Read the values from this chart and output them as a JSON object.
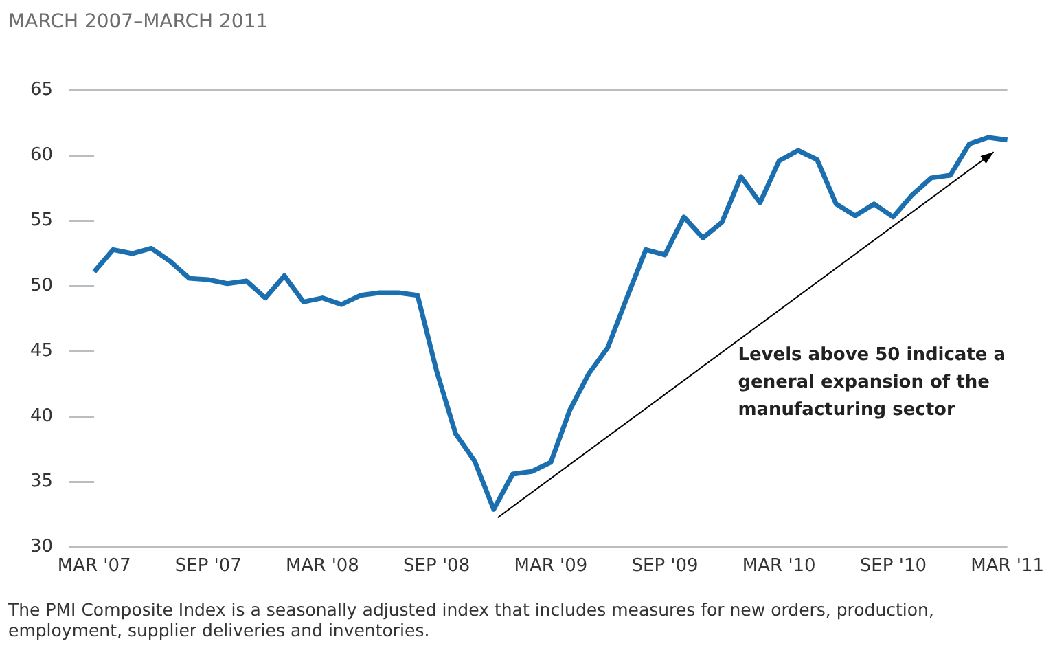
{
  "chart_data": {
    "type": "line",
    "title": "MARCH 2007–MARCH 2011",
    "categories": [
      "MAR '07",
      null,
      null,
      null,
      null,
      null,
      "SEP '07",
      null,
      null,
      null,
      null,
      null,
      "MAR '08",
      null,
      null,
      null,
      null,
      null,
      "SEP '08",
      null,
      null,
      null,
      null,
      null,
      "MAR '09",
      null,
      null,
      null,
      null,
      null,
      "SEP '09",
      null,
      null,
      null,
      null,
      null,
      "MAR '10",
      null,
      null,
      null,
      null,
      null,
      "SEP '10",
      null,
      null,
      null,
      null,
      null,
      "MAR '11"
    ],
    "series": [
      {
        "color": "#1b6fae",
        "values": [
          51.1,
          52.8,
          52.5,
          52.9,
          51.9,
          50.6,
          50.5,
          50.2,
          50.4,
          49.1,
          50.8,
          48.8,
          49.1,
          48.6,
          49.3,
          49.5,
          49.5,
          49.3,
          43.5,
          38.7,
          36.6,
          32.9,
          35.6,
          35.8,
          36.5,
          40.5,
          43.3,
          45.3,
          49.1,
          52.8,
          52.4,
          55.3,
          53.7,
          54.9,
          58.4,
          56.4,
          59.6,
          60.4,
          59.7,
          56.3,
          55.4,
          56.3,
          55.3,
          57.0,
          58.3,
          58.5,
          60.9,
          61.4,
          61.2
        ]
      }
    ],
    "ylim": [
      30,
      65
    ],
    "yticks": [
      30,
      35,
      40,
      45,
      50,
      55,
      60,
      65
    ],
    "grid": false,
    "legend": false,
    "marker": "none",
    "line_style": "solid",
    "annotations": [
      "Levels above 50 indicate a general expansion of the manufacturing sector",
      "The PMI Composite Index is a seasonally adjusted index that includes measures for new orders, production, employment, supplier deliveries and inventories."
    ]
  }
}
